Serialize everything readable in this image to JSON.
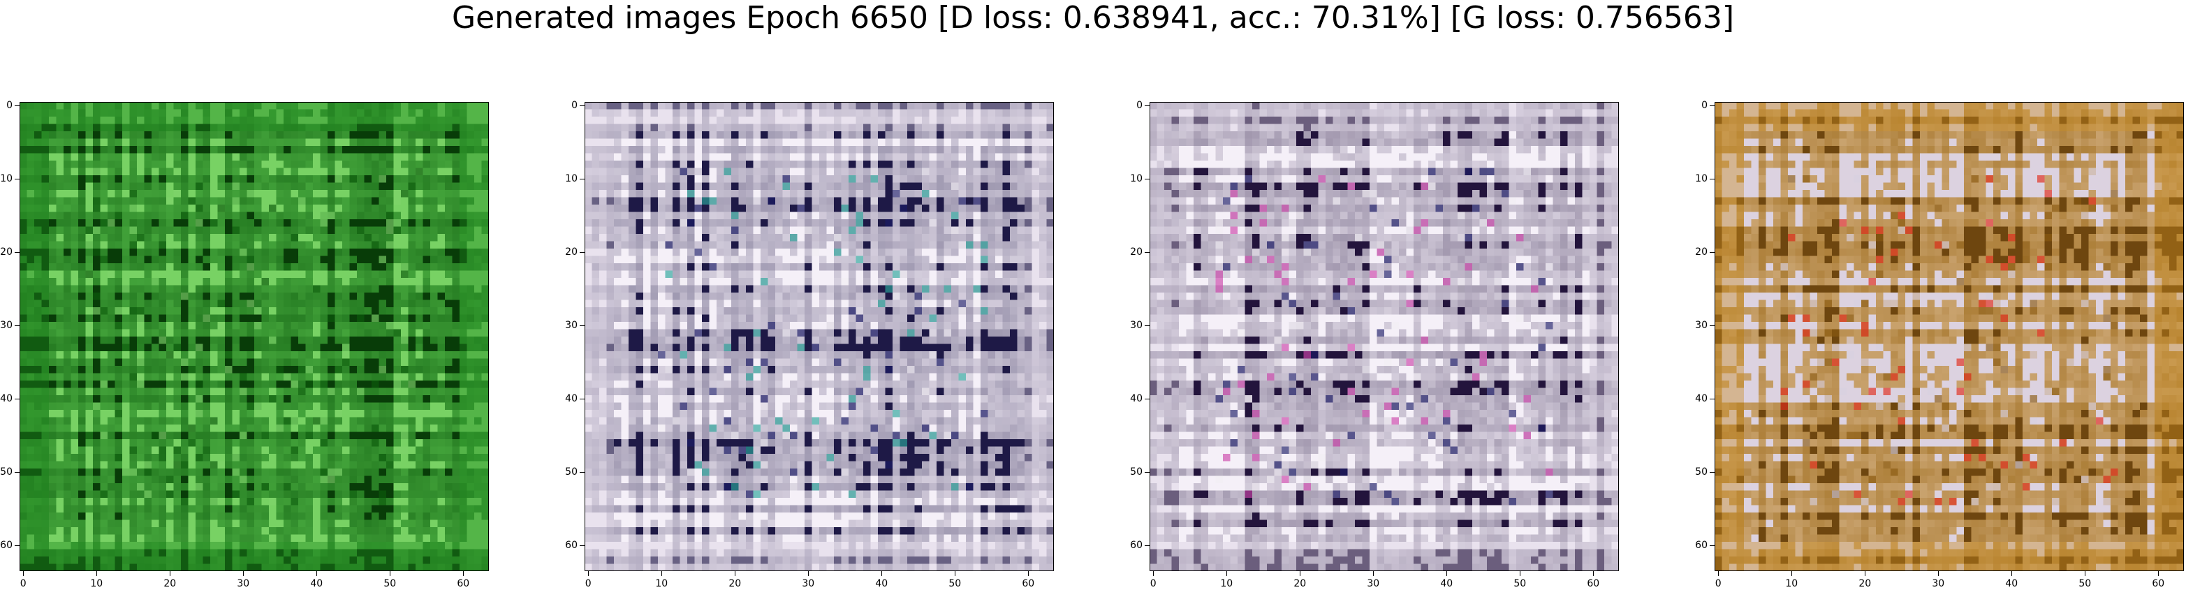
{
  "chart_data": [
    {
      "type": "heatmap",
      "title": "Generated images Epoch 6650 [D loss: 0.638941, acc.: 70.31%] [G loss: 0.756563]",
      "panels": [
        {
          "name": "",
          "size": [
            64,
            64
          ],
          "dominant_colors": [
            "#1f8a1f",
            "#0b5a0b",
            "#7ed36a"
          ]
        },
        {
          "name": "",
          "size": [
            64,
            64
          ],
          "dominant_colors": [
            "#d8cde0",
            "#f2eef4",
            "#1a1a66",
            "#2aa59a"
          ]
        },
        {
          "name": "",
          "size": [
            64,
            64
          ],
          "dominant_colors": [
            "#d8cde0",
            "#f2eef4",
            "#cc44aa",
            "#1a1a66"
          ]
        },
        {
          "name": "",
          "size": [
            64,
            64
          ],
          "dominant_colors": [
            "#c98a1a",
            "#8a5a10",
            "#e02a1a",
            "#d8d0e0"
          ]
        }
      ],
      "xlim": [
        0,
        63
      ],
      "ylim": [
        63,
        0
      ],
      "xticks": [
        "0",
        "10",
        "20",
        "30",
        "40",
        "50",
        "60"
      ],
      "yticks": [
        "0",
        "10",
        "20",
        "30",
        "40",
        "50",
        "60"
      ],
      "xlabel": "",
      "ylabel": "",
      "grid": false,
      "legend": "none"
    }
  ]
}
